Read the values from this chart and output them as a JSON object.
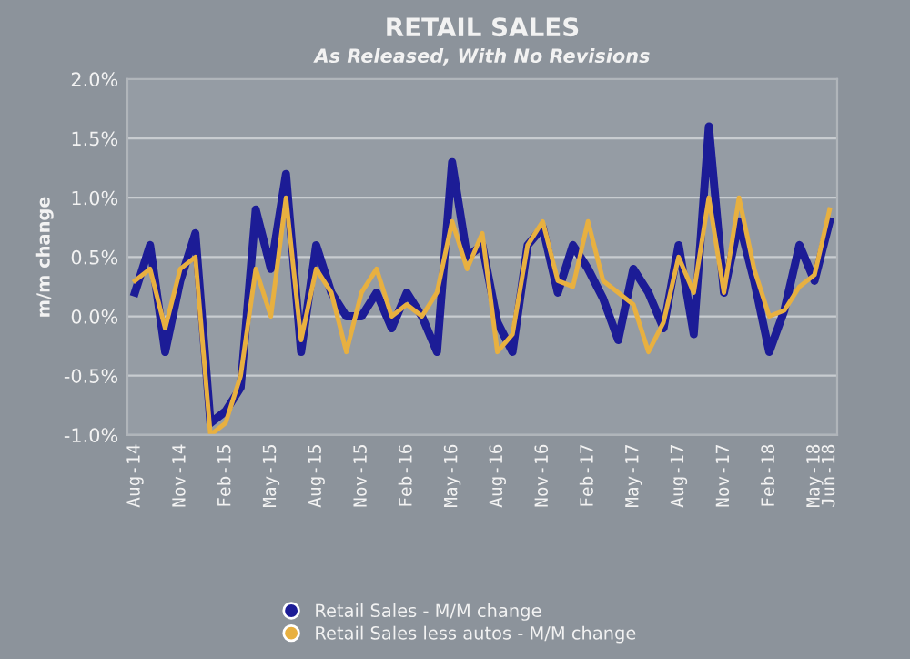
{
  "chart_data": {
    "type": "line",
    "title": "RETAIL SALES",
    "subtitle": "As Released, With No Revisions",
    "ylabel": "m/m change",
    "categories": [
      "Aug-14",
      null,
      null,
      "Nov-14",
      null,
      null,
      "Feb-15",
      null,
      null,
      "May-15",
      null,
      null,
      "Aug-15",
      null,
      null,
      "Nov-15",
      null,
      null,
      "Feb-16",
      null,
      null,
      "May-16",
      null,
      null,
      "Aug-16",
      null,
      null,
      "Nov-16",
      null,
      null,
      "Feb-17",
      null,
      null,
      "May-17",
      null,
      null,
      "Aug-17",
      null,
      null,
      "Nov-17",
      null,
      null,
      "Feb-18",
      null,
      null,
      "May-18",
      "Jun-18"
    ],
    "series": [
      {
        "name": "Retail Sales - M/M change",
        "color": "#1c1c96",
        "values": [
          0.2,
          0.6,
          -0.3,
          0.3,
          0.7,
          -0.9,
          -0.8,
          -0.6,
          0.9,
          0.4,
          1.2,
          -0.3,
          0.6,
          0.2,
          0.0,
          0.0,
          0.2,
          -0.1,
          0.2,
          0.0,
          -0.3,
          1.3,
          0.5,
          0.6,
          -0.05,
          -0.3,
          0.6,
          0.75,
          0.2,
          0.6,
          0.4,
          0.15,
          -0.2,
          0.4,
          0.2,
          -0.1,
          0.6,
          -0.15,
          1.6,
          0.2,
          0.8,
          0.3,
          -0.3,
          0.05,
          0.6,
          0.3,
          0.8
        ]
      },
      {
        "name": "Retail Sales less autos - M/M change",
        "color": "#e8b040",
        "values": [
          0.3,
          0.4,
          -0.1,
          0.4,
          0.5,
          -1.0,
          -0.9,
          -0.5,
          0.4,
          0.0,
          1.0,
          -0.2,
          0.4,
          0.2,
          -0.3,
          0.2,
          0.4,
          0.0,
          0.1,
          0.0,
          0.2,
          0.8,
          0.4,
          0.7,
          -0.3,
          -0.15,
          0.6,
          0.8,
          0.3,
          0.25,
          0.8,
          0.3,
          0.2,
          0.1,
          -0.3,
          -0.05,
          0.5,
          0.2,
          1.0,
          0.2,
          1.0,
          0.4,
          0.0,
          0.05,
          0.25,
          0.35,
          0.9
        ]
      }
    ],
    "ylim": [
      -1.0,
      2.0
    ],
    "yticks": [
      {
        "value": -1.0,
        "label": "-1.0%"
      },
      {
        "value": -0.5,
        "label": "-0.5%"
      },
      {
        "value": 0,
        "label": "0.0%"
      },
      {
        "value": 0.5,
        "label": "0.5%"
      },
      {
        "value": 1.0,
        "label": "1.0%"
      },
      {
        "value": 1.5,
        "label": "1.5%"
      },
      {
        "value": 2.0,
        "label": "2.0%"
      }
    ],
    "grid": "y",
    "legend": "bottom",
    "marker": "none",
    "line_style": "solid"
  }
}
